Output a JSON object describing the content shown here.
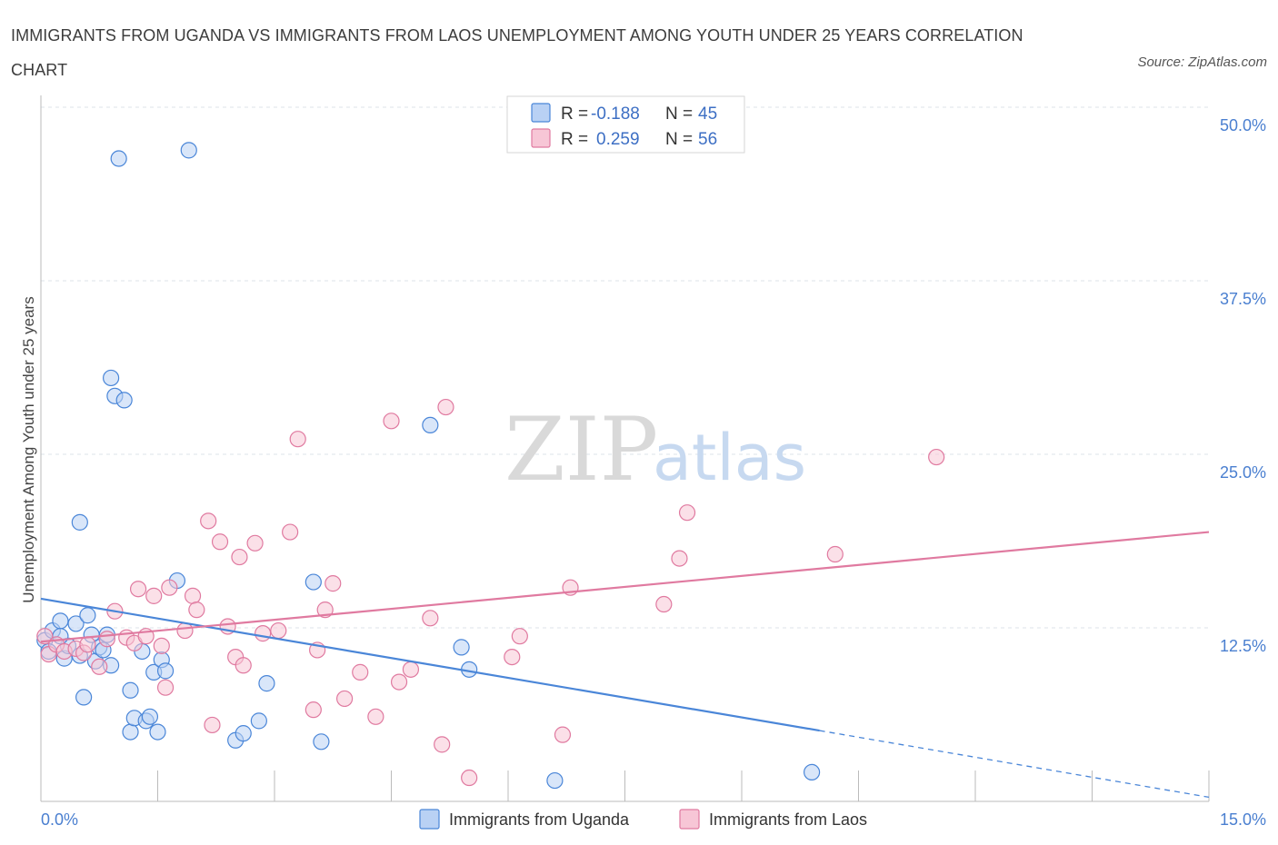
{
  "title": "IMMIGRANTS FROM UGANDA VS IMMIGRANTS FROM LAOS UNEMPLOYMENT AMONG YOUTH UNDER 25 YEARS CORRELATION CHART",
  "source": "Source: ZipAtlas.com",
  "watermark": {
    "zip": "ZIP",
    "atlas": "atlas"
  },
  "colors": {
    "uganda": "#4a86d8",
    "uganda_fill": "#b9d1f4",
    "laos": "#e07aa0",
    "laos_fill": "#f7c6d6",
    "tick_label": "#4a7fd0",
    "grid": "#dde3ea"
  },
  "legend": {
    "r_label": "R =",
    "n_label": "N =",
    "uganda": {
      "r": "-0.188",
      "n": "45"
    },
    "laos": {
      "r": "0.259",
      "n": "56"
    }
  },
  "bottom_legend": [
    "Immigrants from Uganda",
    "Immigrants from Laos"
  ],
  "chart_data": {
    "type": "scatter",
    "xlabel": "",
    "ylabel": "Unemployment Among Youth under 25 years",
    "xlim": [
      0,
      15
    ],
    "ylim": [
      0,
      50
    ],
    "x_tick_labels": [
      "0.0%",
      "15.0%"
    ],
    "y_ticks": [
      12.5,
      25.0,
      37.5,
      50.0
    ],
    "y_tick_labels": [
      "12.5%",
      "25.0%",
      "37.5%",
      "50.0%"
    ],
    "grid": true,
    "legend_position": "top-center",
    "series": [
      {
        "name": "Immigrants from Uganda",
        "color": "#4a86d8",
        "points": [
          [
            0.05,
            11.6
          ],
          [
            0.15,
            12.3
          ],
          [
            0.25,
            13.0
          ],
          [
            0.3,
            10.3
          ],
          [
            0.35,
            11.2
          ],
          [
            0.45,
            12.8
          ],
          [
            0.5,
            10.5
          ],
          [
            0.55,
            7.5
          ],
          [
            0.6,
            13.4
          ],
          [
            0.65,
            12.0
          ],
          [
            0.7,
            10.1
          ],
          [
            0.75,
            11.1
          ],
          [
            0.85,
            12.0
          ],
          [
            0.9,
            9.8
          ],
          [
            0.5,
            20.1
          ],
          [
            0.9,
            30.5
          ],
          [
            0.95,
            29.2
          ],
          [
            1.07,
            28.9
          ],
          [
            1.0,
            46.3
          ],
          [
            1.15,
            8.0
          ],
          [
            1.15,
            5.0
          ],
          [
            1.2,
            6.0
          ],
          [
            1.3,
            10.8
          ],
          [
            1.35,
            5.8
          ],
          [
            1.4,
            6.1
          ],
          [
            1.45,
            9.3
          ],
          [
            1.5,
            5.0
          ],
          [
            1.55,
            10.2
          ],
          [
            1.6,
            9.4
          ],
          [
            1.75,
            15.9
          ],
          [
            1.9,
            46.9
          ],
          [
            2.5,
            4.4
          ],
          [
            2.6,
            4.9
          ],
          [
            2.8,
            5.8
          ],
          [
            2.9,
            8.5
          ],
          [
            3.5,
            15.8
          ],
          [
            3.6,
            4.3
          ],
          [
            5.0,
            27.1
          ],
          [
            5.4,
            11.1
          ],
          [
            5.5,
            9.5
          ],
          [
            6.6,
            1.5
          ],
          [
            9.9,
            2.1
          ],
          [
            0.1,
            10.8
          ],
          [
            0.25,
            11.9
          ],
          [
            0.8,
            10.9
          ]
        ]
      },
      {
        "name": "Immigrants from Laos",
        "color": "#e07aa0",
        "points": [
          [
            0.05,
            11.9
          ],
          [
            0.1,
            10.6
          ],
          [
            0.2,
            11.3
          ],
          [
            0.3,
            10.8
          ],
          [
            0.45,
            11.0
          ],
          [
            0.55,
            10.7
          ],
          [
            0.6,
            11.3
          ],
          [
            0.75,
            9.7
          ],
          [
            0.85,
            11.7
          ],
          [
            0.95,
            13.7
          ],
          [
            1.1,
            11.8
          ],
          [
            1.2,
            11.4
          ],
          [
            1.25,
            15.3
          ],
          [
            1.35,
            11.9
          ],
          [
            1.45,
            14.8
          ],
          [
            1.55,
            11.2
          ],
          [
            1.6,
            8.2
          ],
          [
            1.65,
            15.4
          ],
          [
            1.85,
            12.3
          ],
          [
            1.95,
            14.8
          ],
          [
            2.0,
            13.8
          ],
          [
            2.15,
            20.2
          ],
          [
            2.2,
            5.5
          ],
          [
            2.3,
            18.7
          ],
          [
            2.4,
            12.6
          ],
          [
            2.5,
            10.4
          ],
          [
            2.55,
            17.6
          ],
          [
            2.6,
            9.8
          ],
          [
            2.75,
            18.6
          ],
          [
            2.85,
            12.1
          ],
          [
            3.05,
            12.3
          ],
          [
            3.2,
            19.4
          ],
          [
            3.3,
            26.1
          ],
          [
            3.5,
            6.6
          ],
          [
            3.55,
            10.9
          ],
          [
            3.65,
            13.8
          ],
          [
            3.75,
            15.7
          ],
          [
            3.9,
            7.4
          ],
          [
            4.1,
            9.3
          ],
          [
            4.3,
            6.1
          ],
          [
            4.5,
            27.4
          ],
          [
            4.6,
            8.6
          ],
          [
            4.75,
            9.5
          ],
          [
            5.0,
            13.2
          ],
          [
            5.15,
            4.1
          ],
          [
            5.2,
            28.4
          ],
          [
            5.5,
            1.7
          ],
          [
            6.05,
            10.4
          ],
          [
            6.15,
            11.9
          ],
          [
            6.7,
            4.8
          ],
          [
            6.8,
            15.4
          ],
          [
            8.0,
            14.2
          ],
          [
            8.2,
            17.5
          ],
          [
            8.3,
            20.8
          ],
          [
            10.2,
            17.8
          ],
          [
            11.5,
            24.8
          ]
        ]
      }
    ],
    "trend_lines": [
      {
        "series": "Immigrants from Uganda",
        "x": [
          0,
          10.0
        ],
        "y": [
          14.6,
          5.1
        ],
        "dashed_extension_to": [
          15.0,
          0.3
        ]
      },
      {
        "series": "Immigrants from Laos",
        "x": [
          0,
          15.0
        ],
        "y": [
          11.5,
          19.4
        ]
      }
    ]
  }
}
